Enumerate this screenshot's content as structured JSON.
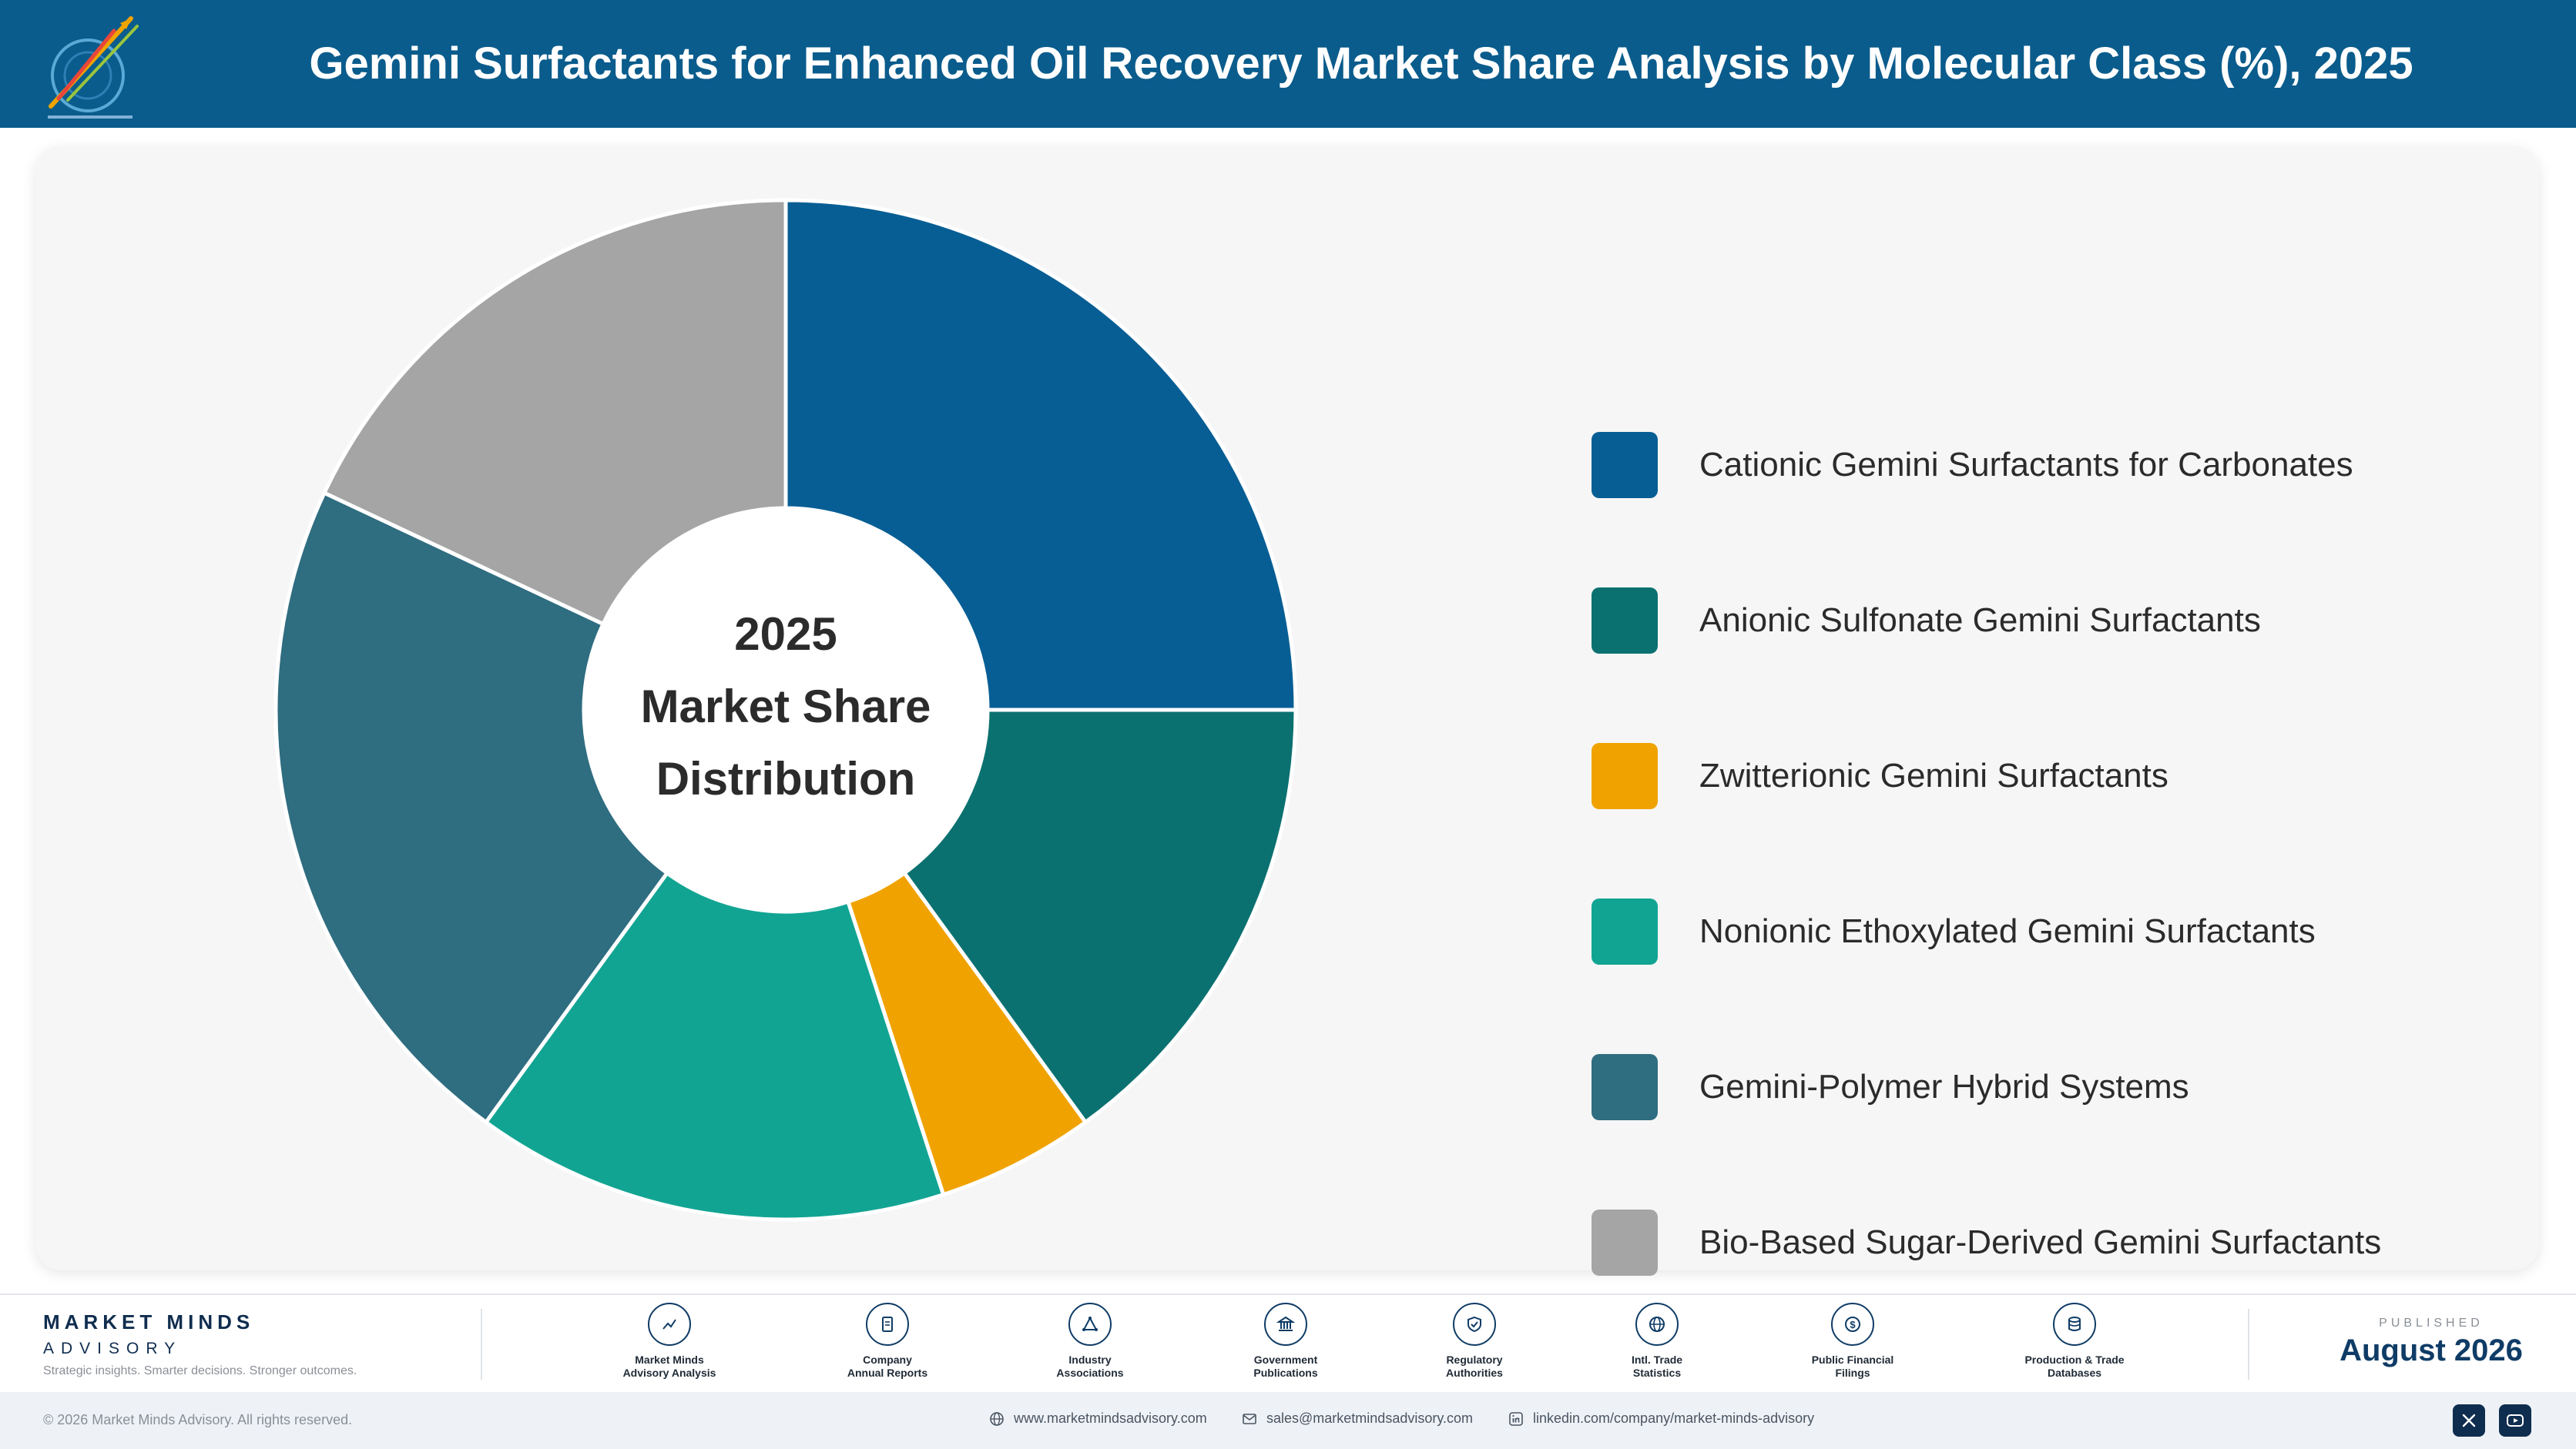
{
  "header": {
    "title": "Gemini Surfactants for Enhanced Oil Recovery Market Share Analysis by Molecular Class (%), 2025"
  },
  "chart_data": {
    "type": "pie",
    "variant": "donut",
    "center_label": [
      "2025",
      "Market Share",
      "Distribution"
    ],
    "categories": [
      "Cationic Gemini Surfactants for Carbonates",
      "Anionic Sulfonate Gemini Surfactants",
      "Zwitterionic Gemini Surfactants",
      "Nonionic Ethoxylated Gemini Surfactants",
      "Gemini-Polymer Hybrid Systems",
      "Bio-Based Sugar-Derived Gemini Surfactants"
    ],
    "values": [
      25,
      15,
      5,
      15,
      22,
      18
    ],
    "colors": [
      "#075e94",
      "#0b7170",
      "#f0a300",
      "#12a493",
      "#2f6d80",
      "#a5a5a5"
    ],
    "legend_position": "right"
  },
  "footer": {
    "brand_name": "MARKET MINDS",
    "brand_sub": "ADVISORY",
    "brand_tagline": "Strategic insights. Smarter decisions. Stronger outcomes.",
    "sources": [
      {
        "icon": "trend-icon",
        "line1": "Market Minds",
        "line2": "Advisory Analysis"
      },
      {
        "icon": "document-icon",
        "line1": "Company",
        "line2": "Annual Reports"
      },
      {
        "icon": "network-icon",
        "line1": "Industry",
        "line2": "Associations"
      },
      {
        "icon": "building-icon",
        "line1": "Government",
        "line2": "Publications"
      },
      {
        "icon": "shield-icon",
        "line1": "Regulatory",
        "line2": "Authorities"
      },
      {
        "icon": "globe-icon",
        "line1": "Intl. Trade",
        "line2": "Statistics"
      },
      {
        "icon": "dollar-icon",
        "line1": "Public Financial",
        "line2": "Filings"
      },
      {
        "icon": "database-icon",
        "line1": "Production & Trade",
        "line2": "Databases"
      }
    ],
    "published_label": "PUBLISHED",
    "published_date": "August 2026"
  },
  "bottom_bar": {
    "copyright": "© 2026 Market Minds Advisory. All rights reserved.",
    "website": "www.marketmindsadvisory.com",
    "email": "sales@marketmindsadvisory.com",
    "linkedin": "linkedin.com/company/market-minds-advisory"
  }
}
